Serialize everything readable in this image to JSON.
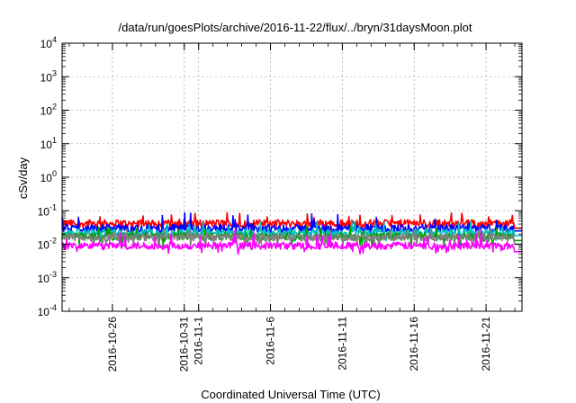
{
  "chart_data": {
    "type": "line",
    "title": "/data/run/goesPlots/archive/2016-11-22/flux/../bryn/31daysMoon.plot",
    "xlabel": "Coordinated Universal Time (UTC)",
    "ylabel": "cSv/day",
    "yscale": "log",
    "ylim": [
      0.0001,
      10000
    ],
    "y_ticks": [
      {
        "base": "10",
        "exp": "-4"
      },
      {
        "base": "10",
        "exp": "-3"
      },
      {
        "base": "10",
        "exp": "-2"
      },
      {
        "base": "10",
        "exp": "-1"
      },
      {
        "base": "10",
        "exp": "0"
      },
      {
        "base": "10",
        "exp": "1"
      },
      {
        "base": "10",
        "exp": "2"
      },
      {
        "base": "10",
        "exp": "3"
      },
      {
        "base": "10",
        "exp": "4"
      }
    ],
    "xlim": [
      "2016-10-22T12:00",
      "2016-11-23T12:00"
    ],
    "x_ticks": [
      "2016-10-26",
      "2016-10-31",
      "2016-11-1",
      "2016-11-6",
      "2016-11-11",
      "2016-11-16",
      "2016-11-21"
    ],
    "grid": true,
    "legend": "none",
    "series": [
      {
        "color": "#ff0000",
        "typical": 0.042,
        "low": 0.03,
        "high": 0.09,
        "end_x": "2016-11-23T12:00",
        "end_y": 0.03
      },
      {
        "color": "#0000ff",
        "typical": 0.03,
        "low": 0.015,
        "high": 0.1,
        "end_x": "2016-11-23T12:00",
        "end_y": 0.025
      },
      {
        "color": "#00c0c0",
        "typical": 0.022,
        "low": 0.012,
        "high": 0.05,
        "end_x": "2016-11-23T12:00",
        "end_y": 0.018
      },
      {
        "color": "#00a000",
        "typical": 0.017,
        "low": 0.008,
        "high": 0.035,
        "end_x": "2016-11-23T12:00",
        "end_y": 0.013
      },
      {
        "color": "#808080",
        "typical": 0.016,
        "low": 0.008,
        "high": 0.03,
        "end_x": "2016-11-23T12:00",
        "end_y": 0.01
      },
      {
        "color": "#ff00ff",
        "typical": 0.009,
        "low": 0.005,
        "high": 0.03,
        "end_x": "2016-11-23T12:00",
        "end_y": 0.006
      }
    ]
  }
}
